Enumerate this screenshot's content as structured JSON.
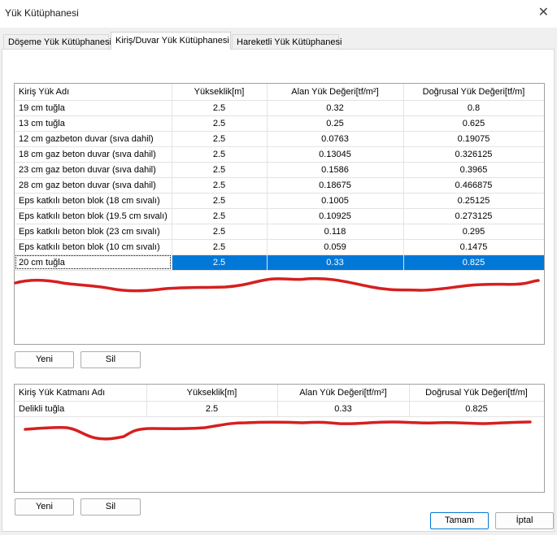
{
  "window": {
    "title": "Yük Kütüphanesi"
  },
  "tabs": [
    {
      "label": "Döşeme Yük Kütüphanesi"
    },
    {
      "label": "Kiriş/Duvar Yük Kütüphanesi"
    },
    {
      "label": "Hareketli Yük Kütüphanesi"
    }
  ],
  "library_grid": {
    "columns": [
      "Kiriş Yük Adı",
      "Yükseklik[m]",
      "Alan Yük Değeri[tf/m²]",
      "Doğrusal Yük Değeri[tf/m]"
    ],
    "rows": [
      [
        "19 cm tuğla",
        "2.5",
        "0.32",
        "0.8"
      ],
      [
        "13 cm tuğla",
        "2.5",
        "0.25",
        "0.625"
      ],
      [
        "12 cm gazbeton duvar (sıva dahil)",
        "2.5",
        "0.0763",
        "0.19075"
      ],
      [
        "18 cm gaz beton duvar (sıva dahil)",
        "2.5",
        "0.13045",
        "0.326125"
      ],
      [
        "23 cm gaz beton duvar  (sıva dahil)",
        "2.5",
        "0.1586",
        "0.3965"
      ],
      [
        "28 cm gaz beton duvar  (sıva dahil)",
        "2.5",
        "0.18675",
        "0.466875"
      ],
      [
        "Eps katkılı beton blok (18 cm sıvalı)",
        "2.5",
        "0.1005",
        "0.25125"
      ],
      [
        "Eps katkılı beton blok (19.5 cm sıvalı)",
        "2.5",
        "0.10925",
        "0.273125"
      ],
      [
        "Eps katkılı beton blok (23 cm sıvalı)",
        "2.5",
        "0.118",
        "0.295"
      ],
      [
        "Eps katkılı beton blok (10 cm sıvalı)",
        "2.5",
        "0.059",
        "0.1475"
      ],
      [
        "20 cm tuğla",
        "2.5",
        "0.33",
        "0.825"
      ]
    ],
    "selected_row": 10
  },
  "library_buttons": {
    "new_label": "Yeni",
    "delete_label": "Sil"
  },
  "layer_grid": {
    "columns": [
      "Kiriş Yük Katmanı Adı",
      "Yükseklik[m]",
      "Alan Yük Değeri[tf/m²]",
      "Doğrusal Yük Değeri[tf/m]"
    ],
    "rows": [
      [
        "Delikli tuğla",
        "2.5",
        "0.33",
        "0.825"
      ]
    ]
  },
  "layer_buttons": {
    "new_label": "Yeni",
    "delete_label": "Sil"
  },
  "footer": {
    "ok_label": "Tamam",
    "cancel_label": "İptal"
  },
  "colors": {
    "selection": "#0078d7",
    "annotation": "#d61f1f"
  },
  "icons": {
    "close": "close-icon"
  }
}
